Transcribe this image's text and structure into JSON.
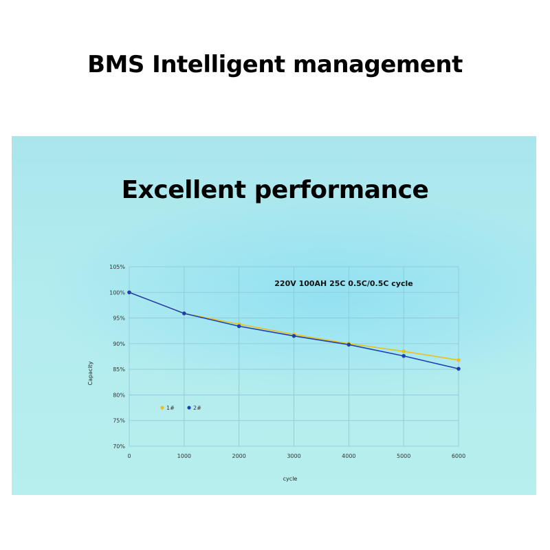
{
  "page_title": "BMS Intelligent management",
  "panel_title": "Excellent performance",
  "colors": {
    "series_1": "#e8c21c",
    "series_2": "#1f3fae",
    "grid": "#8fc3d6"
  },
  "chart_data": {
    "type": "line",
    "annotation": "220V 100AH 25C 0.5C/0.5C cycle",
    "xlabel": "cycle",
    "ylabel": "Capacity",
    "xlim": [
      0,
      6000
    ],
    "ylim": [
      70,
      105
    ],
    "x_ticks": [
      "0",
      "1000",
      "2000",
      "3000",
      "4000",
      "5000",
      "6000"
    ],
    "y_ticks": [
      "70%",
      "75%",
      "80%",
      "85%",
      "90%",
      "95%",
      "100%",
      "105%"
    ],
    "grid": true,
    "legend_position": "lower-left",
    "series": [
      {
        "name": "1#",
        "x": [
          0,
          1000,
          2000,
          3000,
          4000,
          5000,
          6000
        ],
        "y": [
          100,
          95.9,
          93.8,
          91.8,
          90.0,
          88.5,
          86.8
        ]
      },
      {
        "name": "2#",
        "x": [
          0,
          1000,
          2000,
          3000,
          4000,
          5000,
          6000
        ],
        "y": [
          100,
          95.9,
          93.4,
          91.5,
          89.8,
          87.6,
          85.1
        ]
      }
    ]
  }
}
